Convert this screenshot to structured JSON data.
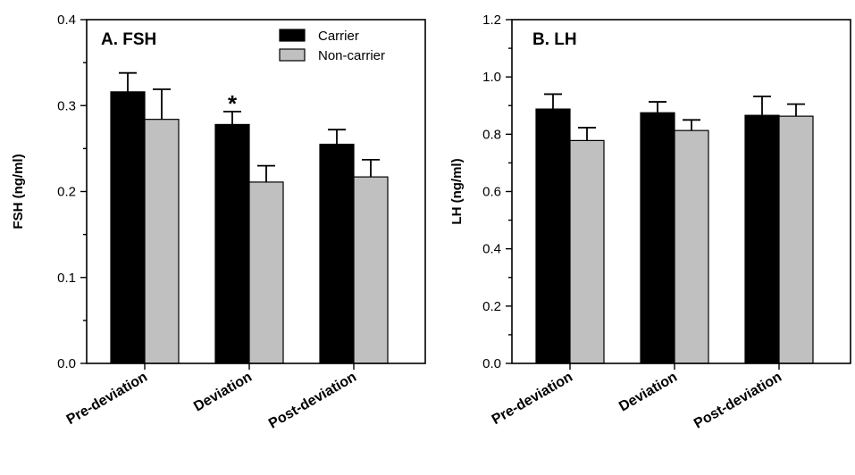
{
  "chart_data": [
    {
      "type": "bar",
      "title": "A. FSH",
      "ylabel": "FSH (ng/ml)",
      "xlabel": "",
      "ylim": [
        0,
        0.4
      ],
      "yticks": [
        "0.0",
        "0.1",
        "0.2",
        "0.3",
        "0.4"
      ],
      "categories": [
        "Pre-deviation",
        "Deviation",
        "Post-deviation"
      ],
      "series": [
        {
          "name": "Carrier",
          "color": "#000000",
          "values": [
            0.316,
            0.278,
            0.255
          ],
          "errors": [
            0.022,
            0.015,
            0.017
          ]
        },
        {
          "name": "Non-carrier",
          "color": "#c0c0c0",
          "values": [
            0.284,
            0.211,
            0.217
          ],
          "errors": [
            0.035,
            0.019,
            0.02
          ]
        }
      ],
      "annotations": [
        {
          "text": "*",
          "category": "Deviation",
          "series": "Carrier"
        }
      ],
      "legend": {
        "position": "top-right"
      }
    },
    {
      "type": "bar",
      "title": "B. LH",
      "ylabel": "LH (ng/ml)",
      "xlabel": "",
      "ylim": [
        0,
        1.2
      ],
      "yticks": [
        "0.0",
        "0.2",
        "0.4",
        "0.6",
        "0.8",
        "1.0",
        "1.2"
      ],
      "categories": [
        "Pre-deviation",
        "Deviation",
        "Post-deviation"
      ],
      "series": [
        {
          "name": "Carrier",
          "color": "#000000",
          "values": [
            0.888,
            0.875,
            0.866
          ],
          "errors": [
            0.052,
            0.038,
            0.066
          ]
        },
        {
          "name": "Non-carrier",
          "color": "#c0c0c0",
          "values": [
            0.778,
            0.813,
            0.863
          ],
          "errors": [
            0.045,
            0.037,
            0.042
          ]
        }
      ]
    }
  ]
}
